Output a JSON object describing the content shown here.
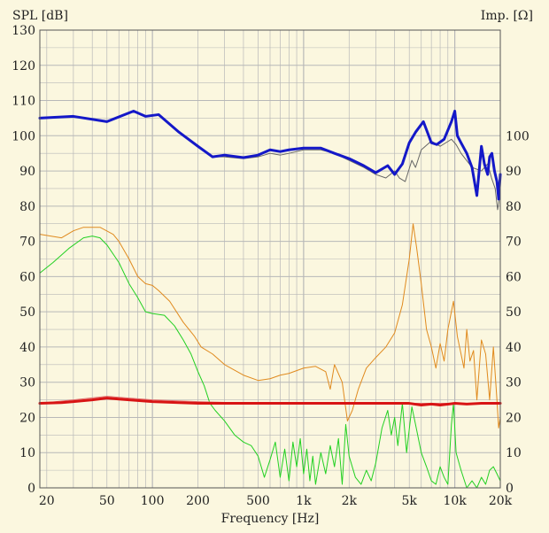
{
  "chart_data": {
    "type": "line",
    "ylabel_left": "SPL [dB]",
    "ylabel_right": "Imp. [Ω]",
    "xlabel": "Frequency [Hz]",
    "x_scale": "log",
    "xlim": [
      18,
      20000
    ],
    "ylim": [
      0,
      130
    ],
    "grid": true,
    "left_ticks": [
      "0",
      "10",
      "20",
      "30",
      "40",
      "50",
      "60",
      "70",
      "80",
      "90",
      "100",
      "110",
      "120",
      "130"
    ],
    "left_tick_values": [
      0,
      10,
      20,
      30,
      40,
      50,
      60,
      70,
      80,
      90,
      100,
      110,
      120,
      130
    ],
    "right_ticks": [
      "0",
      "10",
      "20",
      "30",
      "40",
      "50",
      "60",
      "70",
      "80",
      "90",
      "100"
    ],
    "right_tick_values": [
      0,
      10,
      20,
      30,
      40,
      50,
      60,
      70,
      80,
      90,
      100
    ],
    "x_ticks": [
      "20",
      "50",
      "100",
      "200",
      "500",
      "1k",
      "2k",
      "5k",
      "10k",
      "20k"
    ],
    "x_tick_values": [
      20,
      50,
      100,
      200,
      500,
      1000,
      2000,
      5000,
      10000,
      20000
    ],
    "colors": {
      "spl": "#1418c8",
      "spl_thin": "#666666",
      "orange": "#e08a1e",
      "green": "#22d022",
      "red": "#d81414",
      "red_thin": "#e07070",
      "grid": "#b8b8b8"
    },
    "series": [
      {
        "color_key": "spl_thin",
        "width": 1,
        "points": [
          [
            18,
            105
          ],
          [
            30,
            105.5
          ],
          [
            50,
            104
          ],
          [
            75,
            107
          ],
          [
            90,
            105.5
          ],
          [
            110,
            106
          ],
          [
            150,
            101
          ],
          [
            200,
            97
          ],
          [
            250,
            94
          ],
          [
            300,
            94
          ],
          [
            400,
            93.5
          ],
          [
            500,
            94
          ],
          [
            600,
            95
          ],
          [
            700,
            94.5
          ],
          [
            800,
            95
          ],
          [
            1000,
            96
          ],
          [
            1300,
            96
          ],
          [
            1600,
            95
          ],
          [
            2000,
            93
          ],
          [
            2500,
            91
          ],
          [
            3000,
            89
          ],
          [
            3500,
            88
          ],
          [
            4000,
            90
          ],
          [
            4300,
            88
          ],
          [
            4700,
            87
          ],
          [
            5200,
            93
          ],
          [
            5500,
            91
          ],
          [
            6000,
            96
          ],
          [
            7000,
            98.5
          ],
          [
            8000,
            97
          ],
          [
            9500,
            99
          ],
          [
            10200,
            97.5
          ],
          [
            11000,
            95
          ],
          [
            13000,
            91
          ],
          [
            15000,
            90
          ],
          [
            16500,
            92
          ],
          [
            17500,
            88
          ],
          [
            18500,
            85
          ],
          [
            19200,
            79
          ],
          [
            20000,
            84
          ]
        ]
      },
      {
        "color_key": "spl",
        "width": 3,
        "points": [
          [
            18,
            105
          ],
          [
            30,
            105.5
          ],
          [
            50,
            104
          ],
          [
            75,
            107
          ],
          [
            90,
            105.5
          ],
          [
            110,
            106
          ],
          [
            150,
            101
          ],
          [
            200,
            97
          ],
          [
            250,
            94
          ],
          [
            300,
            94.5
          ],
          [
            400,
            93.8
          ],
          [
            500,
            94.5
          ],
          [
            600,
            96
          ],
          [
            700,
            95.5
          ],
          [
            800,
            96
          ],
          [
            1000,
            96.5
          ],
          [
            1300,
            96.5
          ],
          [
            1600,
            95
          ],
          [
            2000,
            93.5
          ],
          [
            2500,
            91.5
          ],
          [
            3000,
            89.5
          ],
          [
            3600,
            91.5
          ],
          [
            4000,
            89
          ],
          [
            4500,
            92
          ],
          [
            5000,
            98
          ],
          [
            5500,
            101
          ],
          [
            6200,
            104
          ],
          [
            7000,
            98
          ],
          [
            7600,
            97.5
          ],
          [
            8500,
            99
          ],
          [
            9500,
            104
          ],
          [
            10000,
            107
          ],
          [
            10400,
            100
          ],
          [
            11000,
            98
          ],
          [
            12000,
            95
          ],
          [
            13000,
            91
          ],
          [
            14000,
            83
          ],
          [
            15000,
            97
          ],
          [
            15700,
            92
          ],
          [
            16500,
            89
          ],
          [
            17000,
            94
          ],
          [
            17600,
            95
          ],
          [
            18300,
            90
          ],
          [
            19000,
            87
          ],
          [
            19500,
            82
          ],
          [
            20000,
            89
          ]
        ]
      },
      {
        "color_key": "orange",
        "width": 1,
        "points": [
          [
            18,
            72
          ],
          [
            25,
            71
          ],
          [
            30,
            73
          ],
          [
            35,
            74
          ],
          [
            45,
            74
          ],
          [
            55,
            72
          ],
          [
            60,
            70
          ],
          [
            70,
            65
          ],
          [
            80,
            60
          ],
          [
            90,
            58
          ],
          [
            100,
            57.5
          ],
          [
            110,
            56
          ],
          [
            130,
            53
          ],
          [
            160,
            47
          ],
          [
            190,
            43
          ],
          [
            210,
            40
          ],
          [
            250,
            38
          ],
          [
            300,
            35
          ],
          [
            400,
            32
          ],
          [
            500,
            30.5
          ],
          [
            600,
            31
          ],
          [
            700,
            32
          ],
          [
            800,
            32.5
          ],
          [
            1000,
            34
          ],
          [
            1200,
            34.5
          ],
          [
            1400,
            33
          ],
          [
            1500,
            28
          ],
          [
            1600,
            35
          ],
          [
            1800,
            30
          ],
          [
            1950,
            19
          ],
          [
            2100,
            22
          ],
          [
            2300,
            28
          ],
          [
            2600,
            34
          ],
          [
            3000,
            37
          ],
          [
            3500,
            40
          ],
          [
            4000,
            44
          ],
          [
            4500,
            52
          ],
          [
            5000,
            65
          ],
          [
            5300,
            75
          ],
          [
            5600,
            68
          ],
          [
            6000,
            58
          ],
          [
            6500,
            45
          ],
          [
            7000,
            40
          ],
          [
            7500,
            34
          ],
          [
            8000,
            41
          ],
          [
            8500,
            36
          ],
          [
            9000,
            45
          ],
          [
            9800,
            53
          ],
          [
            10400,
            43
          ],
          [
            11000,
            38
          ],
          [
            11500,
            34
          ],
          [
            12000,
            45
          ],
          [
            12600,
            36
          ],
          [
            13300,
            39
          ],
          [
            14000,
            25
          ],
          [
            15000,
            42
          ],
          [
            16000,
            38
          ],
          [
            17000,
            25
          ],
          [
            18000,
            40
          ],
          [
            19000,
            25
          ],
          [
            19500,
            17
          ],
          [
            20000,
            20
          ]
        ]
      },
      {
        "color_key": "green",
        "width": 1,
        "points": [
          [
            18,
            61
          ],
          [
            22,
            64
          ],
          [
            28,
            68
          ],
          [
            35,
            71
          ],
          [
            40,
            71.5
          ],
          [
            45,
            71
          ],
          [
            50,
            69
          ],
          [
            60,
            64
          ],
          [
            70,
            58
          ],
          [
            80,
            54
          ],
          [
            90,
            50
          ],
          [
            100,
            49.5
          ],
          [
            120,
            49
          ],
          [
            140,
            46
          ],
          [
            160,
            42
          ],
          [
            180,
            38
          ],
          [
            200,
            33
          ],
          [
            220,
            29
          ],
          [
            240,
            24
          ],
          [
            260,
            22
          ],
          [
            300,
            19
          ],
          [
            350,
            15
          ],
          [
            400,
            13
          ],
          [
            450,
            12
          ],
          [
            500,
            9
          ],
          [
            550,
            3
          ],
          [
            600,
            8
          ],
          [
            650,
            13
          ],
          [
            700,
            3
          ],
          [
            750,
            11
          ],
          [
            800,
            2
          ],
          [
            850,
            13
          ],
          [
            900,
            6
          ],
          [
            950,
            14
          ],
          [
            1000,
            4
          ],
          [
            1050,
            11
          ],
          [
            1100,
            2
          ],
          [
            1150,
            9
          ],
          [
            1200,
            1
          ],
          [
            1300,
            10
          ],
          [
            1400,
            4
          ],
          [
            1500,
            12
          ],
          [
            1600,
            6
          ],
          [
            1700,
            14
          ],
          [
            1800,
            1
          ],
          [
            1900,
            18
          ],
          [
            2000,
            9
          ],
          [
            2200,
            3
          ],
          [
            2400,
            1
          ],
          [
            2600,
            5
          ],
          [
            2800,
            2
          ],
          [
            3000,
            7
          ],
          [
            3300,
            17
          ],
          [
            3600,
            22
          ],
          [
            3800,
            15
          ],
          [
            4000,
            20
          ],
          [
            4200,
            12
          ],
          [
            4500,
            24
          ],
          [
            4800,
            10
          ],
          [
            5200,
            23
          ],
          [
            5500,
            18
          ],
          [
            6000,
            10
          ],
          [
            6500,
            6
          ],
          [
            7000,
            2
          ],
          [
            7500,
            1
          ],
          [
            8000,
            6
          ],
          [
            8500,
            3
          ],
          [
            9000,
            1
          ],
          [
            9500,
            18
          ],
          [
            9800,
            24
          ],
          [
            10200,
            10
          ],
          [
            11000,
            5
          ],
          [
            12000,
            0
          ],
          [
            13000,
            2
          ],
          [
            14000,
            0
          ],
          [
            15000,
            3
          ],
          [
            16000,
            1
          ],
          [
            17000,
            5
          ],
          [
            18000,
            6
          ],
          [
            19000,
            4
          ],
          [
            20000,
            2
          ]
        ]
      },
      {
        "color_key": "red_thin",
        "width": 1,
        "points": [
          [
            18,
            24
          ],
          [
            30,
            25
          ],
          [
            50,
            26
          ],
          [
            70,
            25.5
          ],
          [
            100,
            25
          ],
          [
            200,
            24.5
          ],
          [
            500,
            24
          ],
          [
            1000,
            24
          ],
          [
            2000,
            24
          ],
          [
            5000,
            24
          ],
          [
            10000,
            24
          ],
          [
            20000,
            24
          ]
        ]
      },
      {
        "color_key": "red",
        "width": 3,
        "points": [
          [
            18,
            24
          ],
          [
            25,
            24.2
          ],
          [
            30,
            24.5
          ],
          [
            40,
            25
          ],
          [
            50,
            25.5
          ],
          [
            60,
            25.2
          ],
          [
            80,
            24.8
          ],
          [
            100,
            24.5
          ],
          [
            150,
            24.2
          ],
          [
            200,
            24
          ],
          [
            500,
            24
          ],
          [
            1000,
            24
          ],
          [
            2000,
            24
          ],
          [
            5000,
            24
          ],
          [
            6000,
            23.5
          ],
          [
            7000,
            23.8
          ],
          [
            8000,
            23.5
          ],
          [
            10000,
            24
          ],
          [
            12000,
            23.8
          ],
          [
            15000,
            24
          ],
          [
            20000,
            24
          ]
        ]
      }
    ]
  }
}
